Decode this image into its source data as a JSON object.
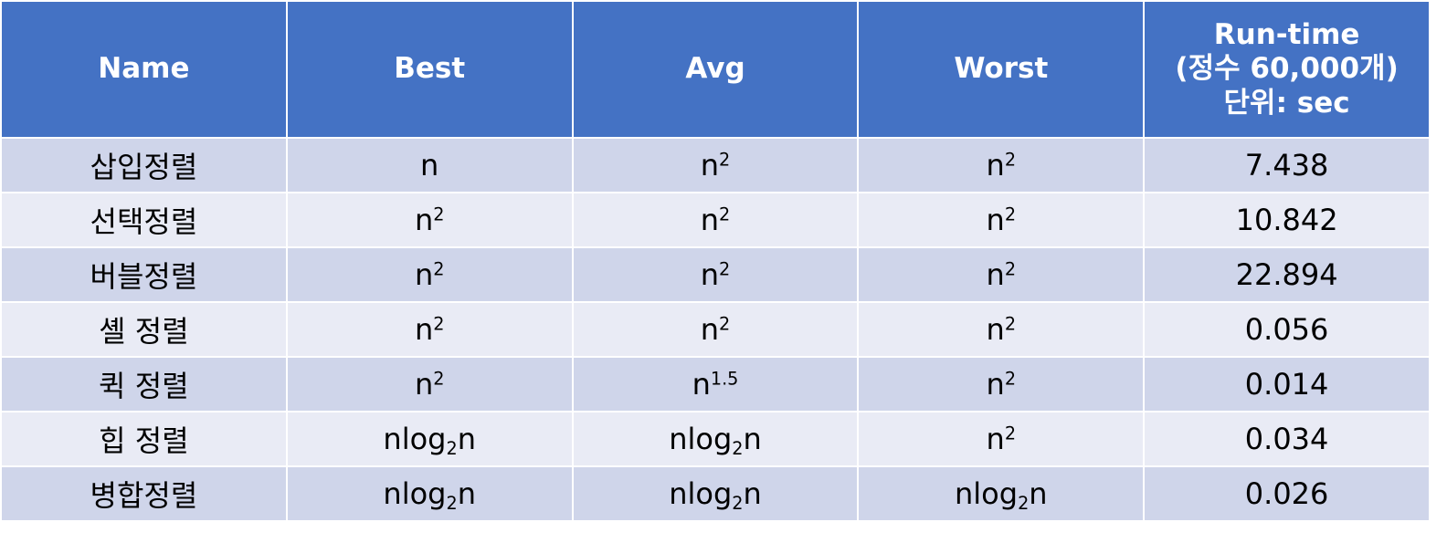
{
  "header": {
    "name": "Name",
    "best": "Best",
    "avg": "Avg",
    "worst": "Worst",
    "runtime_line1": "Run-time",
    "runtime_line2": "(정수 60,000개)",
    "runtime_line3": "단위: sec"
  },
  "rows": [
    {
      "name": "삽입정렬",
      "best": {
        "base": "n",
        "sup": "",
        "sub": "",
        "tail": ""
      },
      "avg": {
        "base": "n",
        "sup": "2",
        "sub": "",
        "tail": ""
      },
      "worst": {
        "base": "n",
        "sup": "2",
        "sub": "",
        "tail": ""
      },
      "runtime": "7.438"
    },
    {
      "name": "선택정렬",
      "best": {
        "base": "n",
        "sup": "2",
        "sub": "",
        "tail": ""
      },
      "avg": {
        "base": "n",
        "sup": "2",
        "sub": "",
        "tail": ""
      },
      "worst": {
        "base": "n",
        "sup": "2",
        "sub": "",
        "tail": ""
      },
      "runtime": "10.842"
    },
    {
      "name": "버블정렬",
      "best": {
        "base": "n",
        "sup": "2",
        "sub": "",
        "tail": ""
      },
      "avg": {
        "base": "n",
        "sup": "2",
        "sub": "",
        "tail": ""
      },
      "worst": {
        "base": "n",
        "sup": "2",
        "sub": "",
        "tail": ""
      },
      "runtime": "22.894"
    },
    {
      "name": "셸 정렬",
      "best": {
        "base": "n",
        "sup": "2",
        "sub": "",
        "tail": ""
      },
      "avg": {
        "base": "n",
        "sup": "2",
        "sub": "",
        "tail": ""
      },
      "worst": {
        "base": "n",
        "sup": "2",
        "sub": "",
        "tail": ""
      },
      "runtime": "0.056"
    },
    {
      "name": "퀵 정렬",
      "best": {
        "base": "n",
        "sup": "2",
        "sub": "",
        "tail": ""
      },
      "avg": {
        "base": "n",
        "sup": "1.5",
        "sub": "",
        "tail": ""
      },
      "worst": {
        "base": "n",
        "sup": "2",
        "sub": "",
        "tail": ""
      },
      "runtime": "0.014"
    },
    {
      "name": "힙 정렬",
      "best": {
        "base": "nlog",
        "sup": "",
        "sub": "2",
        "tail": "n"
      },
      "avg": {
        "base": "nlog",
        "sup": "",
        "sub": "2",
        "tail": "n"
      },
      "worst": {
        "base": "n",
        "sup": "2",
        "sub": "",
        "tail": ""
      },
      "runtime": "0.034"
    },
    {
      "name": "병합정렬",
      "best": {
        "base": "nlog",
        "sup": "",
        "sub": "2",
        "tail": "n"
      },
      "avg": {
        "base": "nlog",
        "sup": "",
        "sub": "2",
        "tail": "n"
      },
      "worst": {
        "base": "nlog",
        "sup": "",
        "sub": "2",
        "tail": "n"
      },
      "runtime": "0.026"
    }
  ],
  "colors": {
    "header_bg": "#4472c4",
    "row_odd_bg": "#cfd5ea",
    "row_even_bg": "#e9ebf5",
    "header_text": "#ffffff",
    "body_text": "#000000"
  }
}
